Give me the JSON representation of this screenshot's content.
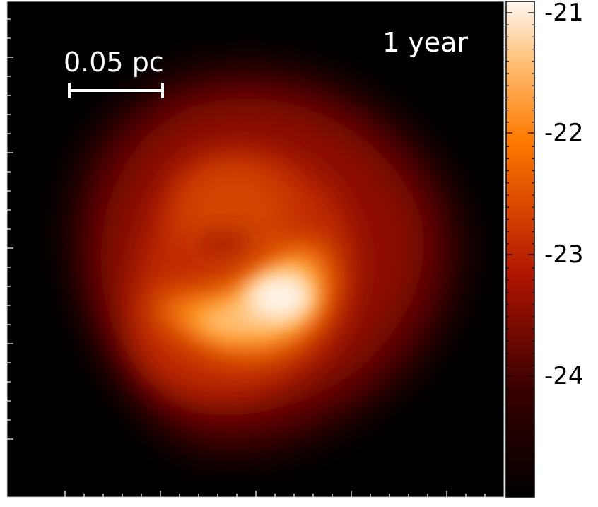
{
  "annotations": {
    "time_label": "1 year",
    "scale_bar_label": "0.05 pc"
  },
  "colorbar": {
    "tick_labels": [
      "-21",
      "-22",
      "-23",
      "-24"
    ],
    "colormap": "gist_heat",
    "colors": {
      "low": "#000000",
      "mid_low": "#5a0000",
      "mid": "#b31a00",
      "mid_high": "#ff7a00",
      "high": "#fff8f2"
    }
  },
  "frame": {
    "background": "#000000",
    "tick_color": "#ffffff"
  }
}
